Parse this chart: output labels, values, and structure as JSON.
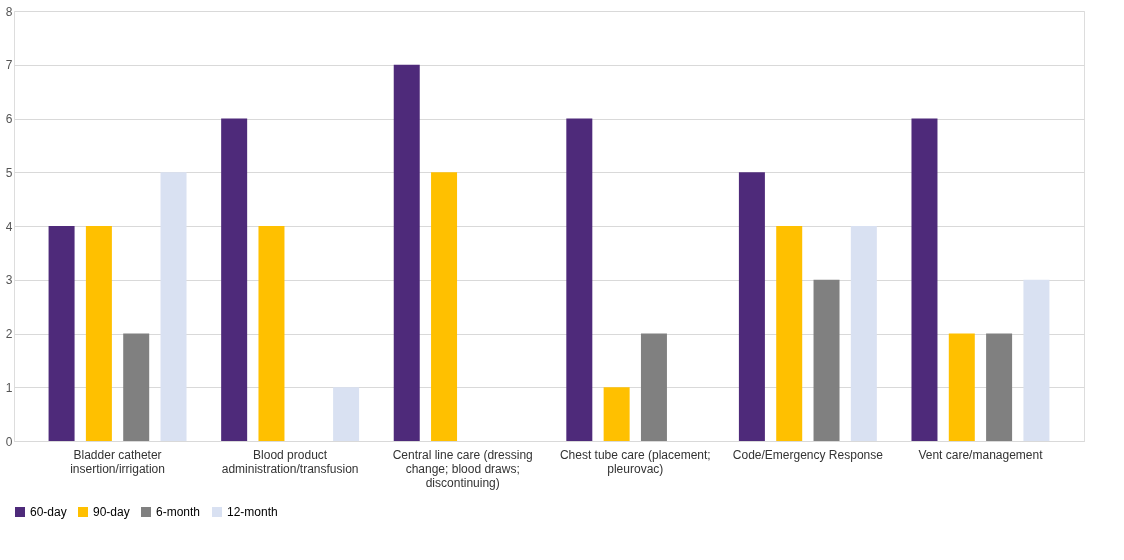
{
  "chart_data": {
    "type": "bar",
    "categories": [
      "Bladder catheter insertion/irrigation",
      "Blood product administration/transfusion",
      "Central line care (dressing change; blood draws; discontinuing)",
      "Chest tube care (placement; pleurovac)",
      "Code/Emergency Response",
      "Vent care/management"
    ],
    "series": [
      {
        "name": "60-day",
        "color": "#4e2a7a",
        "values": [
          4,
          6,
          7,
          6,
          5,
          6
        ]
      },
      {
        "name": "90-day",
        "color": "#ffc000",
        "values": [
          4,
          4,
          5,
          1,
          4,
          2
        ]
      },
      {
        "name": "6-month",
        "color": "#808080",
        "values": [
          2,
          null,
          null,
          2,
          3,
          2
        ]
      },
      {
        "name": "12-month",
        "color": "#d9e1f2",
        "values": [
          5,
          1,
          null,
          null,
          4,
          3
        ]
      }
    ],
    "ylim": [
      0,
      8
    ],
    "yticks": [
      0,
      1,
      2,
      3,
      4,
      5,
      6,
      7,
      8
    ],
    "grid": "y",
    "legend": "bottom"
  }
}
